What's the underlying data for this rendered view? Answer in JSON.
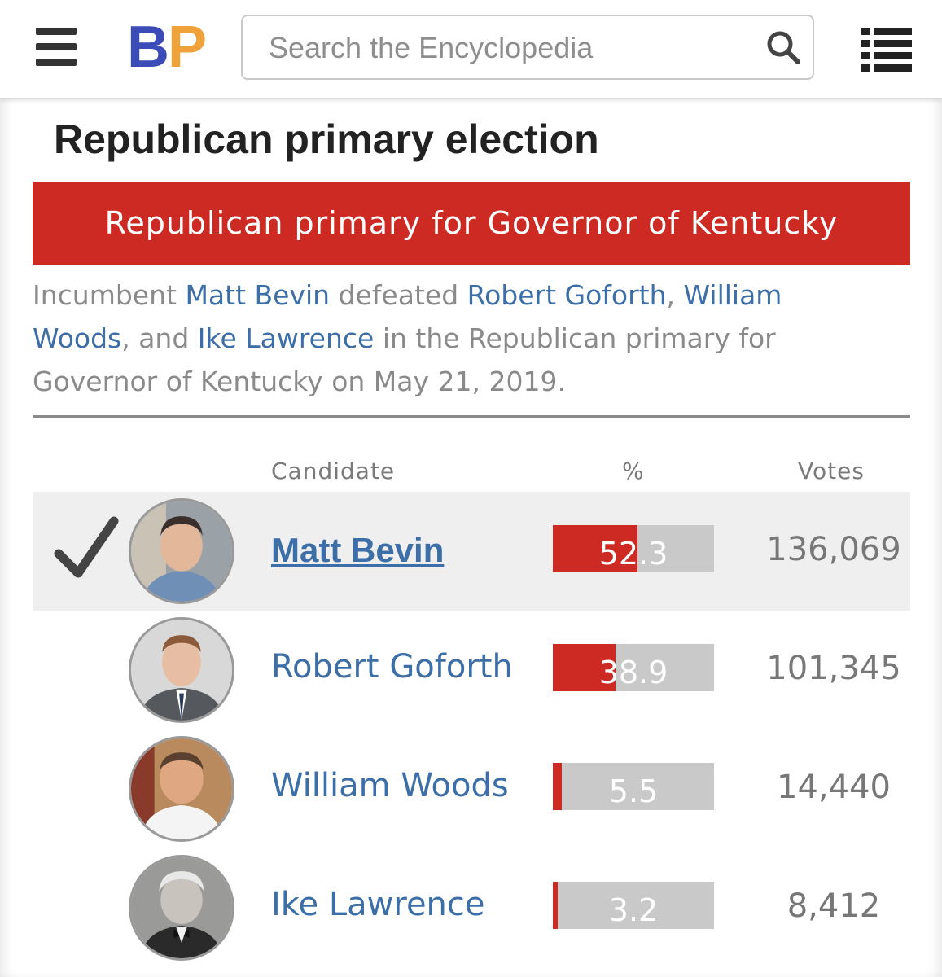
{
  "header": {
    "logo": {
      "b": "B",
      "p": "P"
    },
    "search": {
      "placeholder": "Search the Encyclopedia"
    },
    "icons": [
      "hamburger-menu-icon",
      "search-icon",
      "list-menu-icon"
    ]
  },
  "main": {
    "section_heading": "Republican primary election",
    "banner": "Republican primary for Governor of Kentucky",
    "summary": {
      "t1": "Incumbent ",
      "l1": "Matt Bevin",
      "t2": " defeated ",
      "l2": "Robert Goforth",
      "t3": ", ",
      "l3": "William Woods",
      "t4": ", and ",
      "l4": "Ike Lawrence",
      "t5": " in the Republican primary for Governor of Kentucky on May 21, 2019."
    },
    "columns": {
      "candidate": "Candidate",
      "percent": "%",
      "votes": "Votes"
    },
    "candidates": [
      {
        "name": "Matt Bevin",
        "percent": "52.3",
        "votes": "136,069",
        "winner": true
      },
      {
        "name": "Robert Goforth",
        "percent": "38.9",
        "votes": "101,345",
        "winner": false
      },
      {
        "name": "William Woods",
        "percent": "5.5",
        "votes": "14,440",
        "winner": false
      },
      {
        "name": "Ike Lawrence",
        "percent": "3.2",
        "votes": "8,412",
        "winner": false
      }
    ]
  },
  "colors": {
    "accent_red": "#cc2a22",
    "link_blue": "#3c6ea8",
    "logo_blue": "#3b4cb8",
    "logo_orange": "#f0a23a",
    "bar_gray": "#c9c9c9"
  }
}
